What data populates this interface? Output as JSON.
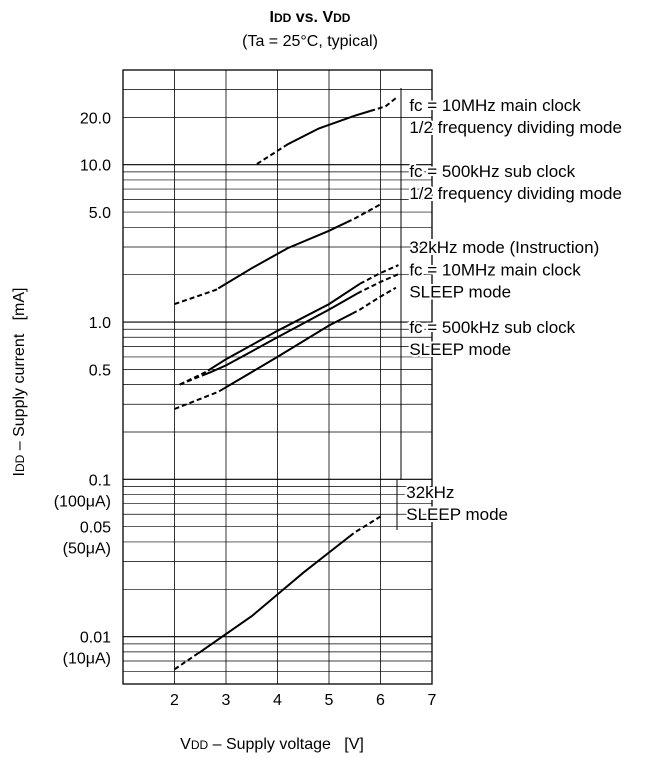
{
  "chart_data": {
    "type": "line",
    "title": {
      "i": "I",
      "i_sub": "DD",
      "vs": " vs. ",
      "v": "V",
      "v_sub": "DD"
    },
    "subtitle": "(Ta = 25°C, typical)",
    "xlabel": {
      "main": "V",
      "sub": "DD",
      "rest": " – Supply voltage   [V]"
    },
    "ylabel": {
      "main": "I",
      "sub": "DD",
      "rest": " – Supply current   [mA]"
    },
    "x_scale": "linear",
    "xlim": [
      1,
      7
    ],
    "y_scale": "log",
    "ylim": [
      0.005,
      40
    ],
    "grid": true,
    "x_ticks": [
      {
        "value": 2,
        "label": "2"
      },
      {
        "value": 3,
        "label": "3"
      },
      {
        "value": 4,
        "label": "4"
      },
      {
        "value": 5,
        "label": "5"
      },
      {
        "value": 6,
        "label": "6"
      },
      {
        "value": 7,
        "label": "7"
      }
    ],
    "y_ticks": [
      {
        "value": 20,
        "label": "20.0"
      },
      {
        "value": 10,
        "label": "10.0"
      },
      {
        "value": 5,
        "label": "5.0"
      },
      {
        "value": 1,
        "label": "1.0"
      },
      {
        "value": 0.5,
        "label": "0.5"
      },
      {
        "value": 0.1,
        "label": "0.1",
        "sub": "(100μA)"
      },
      {
        "value": 0.05,
        "label": "0.05",
        "sub": "(50μA)"
      },
      {
        "value": 0.01,
        "label": "0.01",
        "sub": "(10μA)"
      }
    ],
    "series": [
      {
        "id": "fc10m-half",
        "points": [
          [
            3.6,
            10.1
          ],
          [
            4.2,
            13.5
          ],
          [
            4.8,
            17.0
          ],
          [
            5.5,
            20.5
          ],
          [
            6.1,
            23.5
          ],
          [
            6.3,
            26.5
          ]
        ],
        "solid_x": [
          4.15,
          5.8
        ]
      },
      {
        "id": "fc500k-half",
        "points": [
          [
            2.0,
            1.3
          ],
          [
            2.8,
            1.6
          ],
          [
            3.5,
            2.2
          ],
          [
            4.2,
            2.95
          ],
          [
            5.0,
            3.8
          ],
          [
            5.5,
            4.55
          ],
          [
            6.0,
            5.6
          ]
        ],
        "solid_x": [
          2.85,
          5.35
        ]
      },
      {
        "id": "fc10m-sleep",
        "points": [
          [
            2.1,
            0.4
          ],
          [
            2.6,
            0.48
          ],
          [
            3.0,
            0.58
          ],
          [
            4.0,
            0.88
          ],
          [
            5.0,
            1.3
          ],
          [
            5.6,
            1.75
          ],
          [
            6.0,
            2.05
          ],
          [
            6.35,
            2.3
          ]
        ],
        "solid_x": [
          2.65,
          5.6
        ]
      },
      {
        "id": "fc500k-sleep",
        "points": [
          [
            2.1,
            0.4
          ],
          [
            2.7,
            0.48
          ],
          [
            3.0,
            0.53
          ],
          [
            4.0,
            0.8
          ],
          [
            5.0,
            1.2
          ],
          [
            5.6,
            1.55
          ],
          [
            6.0,
            1.8
          ],
          [
            6.4,
            2.05
          ]
        ],
        "solid_x": [
          2.55,
          5.55
        ]
      },
      {
        "id": "32k-instruction",
        "points": [
          [
            2.0,
            0.28
          ],
          [
            2.85,
            0.36
          ],
          [
            4.0,
            0.6
          ],
          [
            5.0,
            0.95
          ],
          [
            5.6,
            1.2
          ],
          [
            6.0,
            1.45
          ],
          [
            6.3,
            1.65
          ]
        ],
        "solid_x": [
          2.95,
          5.45
        ]
      },
      {
        "id": "32k-sleep",
        "points": [
          [
            2.0,
            0.0062
          ],
          [
            2.5,
            0.008
          ],
          [
            3.5,
            0.0135
          ],
          [
            4.5,
            0.0255
          ],
          [
            5.5,
            0.046
          ],
          [
            6.0,
            0.058
          ]
        ],
        "solid_x": [
          2.45,
          5.4
        ]
      }
    ],
    "annotations": [
      {
        "lines": [
          "fc = 10MHz main clock",
          "1/2 frequency dividing mode"
        ],
        "x": 6.56,
        "y": 24.0,
        "line_gap": 0.08
      },
      {
        "lines": [
          "fc = 500kHz sub clock",
          "1/2 frequency dividing mode"
        ],
        "x": 6.56,
        "y": 9.1,
        "line_gap": 0.08
      },
      {
        "lines": [
          "32kHz mode (Instruction)"
        ],
        "x": 6.56,
        "y": 3.0,
        "line_gap": 0.08
      },
      {
        "lines": [
          "fc = 10MHz main clock",
          "SLEEP mode"
        ],
        "x": 6.56,
        "y": 2.15,
        "line_gap": 0.08
      },
      {
        "lines": [
          "fc = 500kHz sub clock",
          "SLEEP mode"
        ],
        "x": 6.56,
        "y": 0.93,
        "line_gap": 0.08
      },
      {
        "lines": [
          "32kHz",
          "SLEEP mode"
        ],
        "x": 6.5,
        "y": 0.083,
        "line_gap": 0.08
      }
    ]
  }
}
